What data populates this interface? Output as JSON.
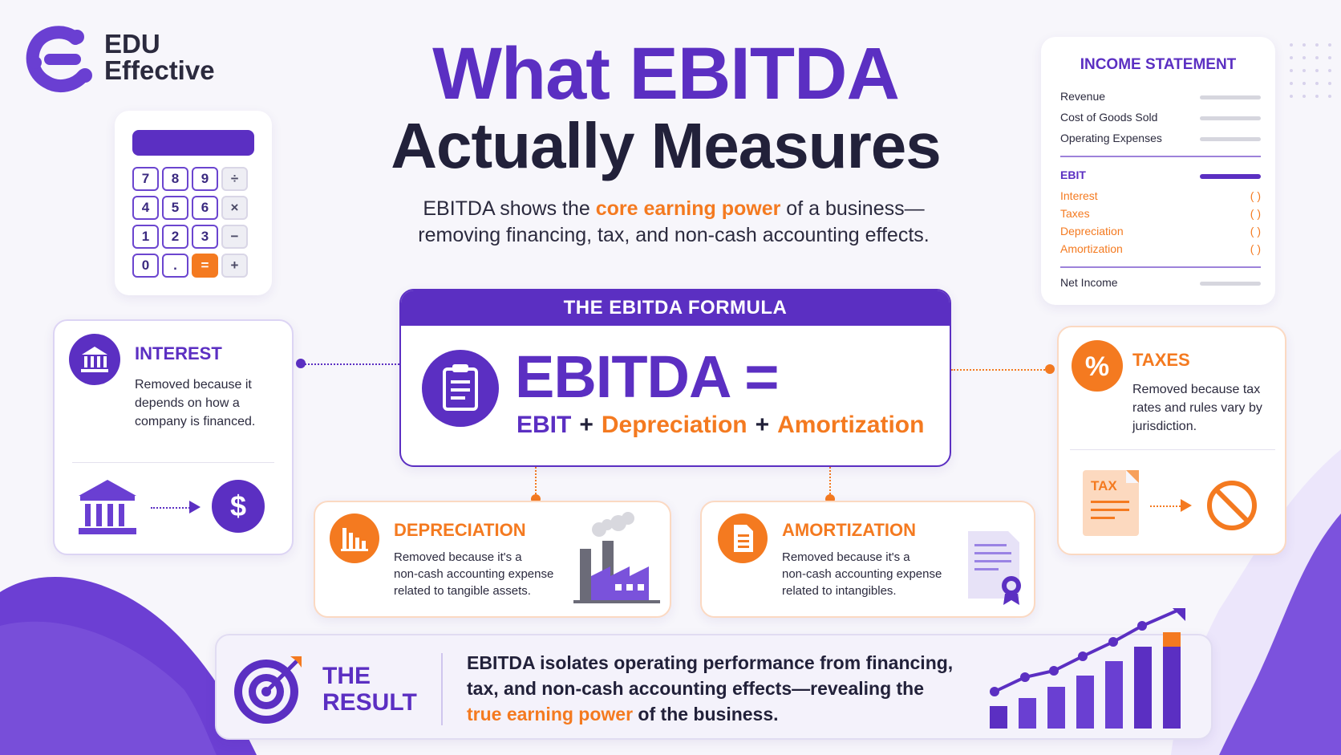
{
  "brand": {
    "line1": "EDU",
    "line2": "Effective"
  },
  "title": {
    "line1": "What EBITDA",
    "line2": "Actually Measures"
  },
  "subtitle": {
    "part1": "EBITDA shows the ",
    "highlight": "core earning power",
    "part2": " of a business—",
    "line2": "removing financing, tax, and non-cash accounting effects."
  },
  "calculator": {
    "keys": [
      "7",
      "8",
      "9",
      "÷",
      "4",
      "5",
      "6",
      "×",
      "1",
      "2",
      "3",
      "−",
      "0",
      ".",
      "=",
      "+"
    ]
  },
  "income_statement": {
    "title": "INCOME STATEMENT",
    "rows_top": [
      "Revenue",
      "Cost of Goods Sold",
      "Operating Expenses"
    ],
    "ebit": "EBIT",
    "rows_adjust": [
      "Interest",
      "Taxes",
      "Depreciation",
      "Amortization"
    ],
    "paren": "( )",
    "net": "Net Income"
  },
  "interest": {
    "title": "INTEREST",
    "body": "Removed because it depends on how a company is financed.",
    "icon": "bank-icon",
    "result_icon": "dollar-icon"
  },
  "taxes": {
    "title": "TAXES",
    "body": "Removed because tax rates and rules vary by jurisdiction.",
    "doc_label": "TAX",
    "icon": "percent-icon",
    "result_icon": "prohibited-icon"
  },
  "formula": {
    "heading": "THE EBITDA FORMULA",
    "lhs": "EBITDA =",
    "ebit": "EBIT",
    "plus": "+",
    "dep": "Depreciation",
    "amort": "Amortization"
  },
  "depreciation": {
    "title": "DEPRECIATION",
    "body_lines": [
      "Removed because it's a",
      "non-cash accounting expense",
      "related to tangible assets."
    ]
  },
  "amortization": {
    "title": "AMORTIZATION",
    "body_lines": [
      "Removed because it's a",
      "non-cash accounting expense",
      "related to intangibles."
    ]
  },
  "result": {
    "title1": "THE",
    "title2": "RESULT",
    "line1": "EBITDA isolates operating performance from financing,",
    "line2": "tax, and non-cash accounting effects—revealing the",
    "highlight": "true earning power",
    "line3_rest": " of the business."
  },
  "colors": {
    "purple": "#5b2fc2",
    "orange": "#f47a20",
    "dark": "#22213a"
  }
}
